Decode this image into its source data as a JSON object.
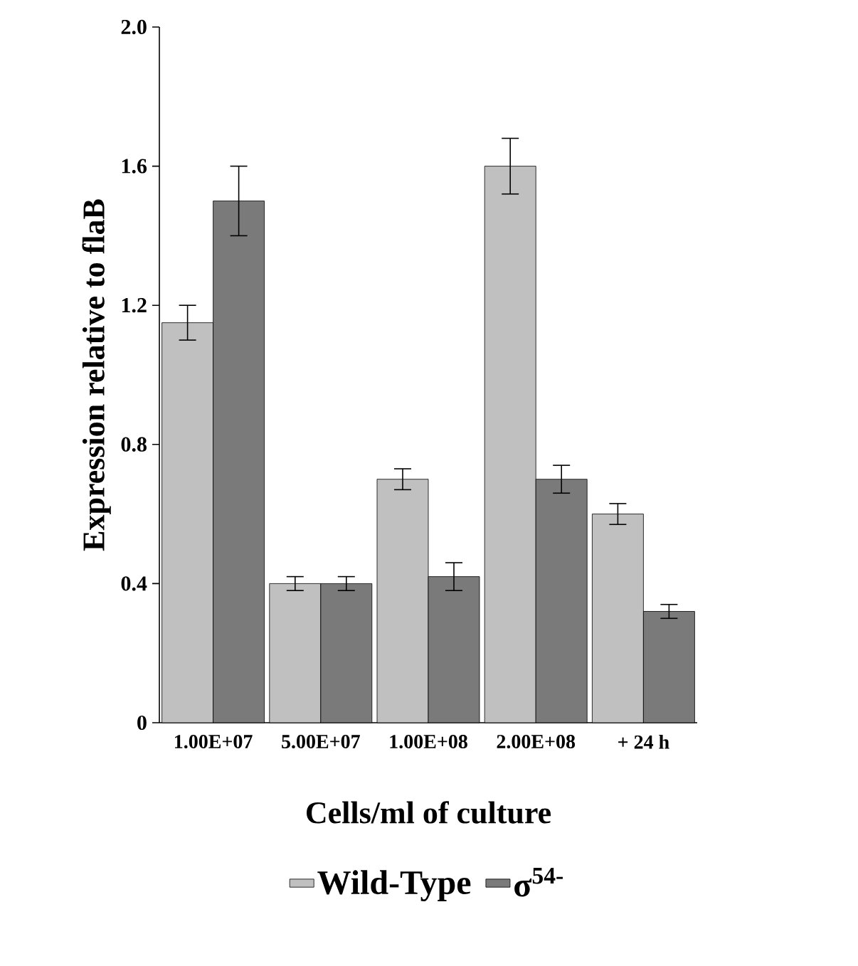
{
  "chart_data": {
    "type": "bar",
    "xlabel": "Cells/ml of culture",
    "ylabel": "Expression relative to flaB",
    "categories": [
      "1.00E+07",
      "5.00E+07",
      "1.00E+08",
      "2.00E+08",
      "+ 24 h"
    ],
    "series": [
      {
        "name": "Wild-Type",
        "color": "#c0c0c0",
        "values": [
          1.15,
          0.4,
          0.7,
          1.6,
          0.6
        ],
        "errors": [
          0.05,
          0.02,
          0.03,
          0.08,
          0.03
        ]
      },
      {
        "name": "σ$^{54-}$",
        "color": "#7a7a7a",
        "values": [
          1.5,
          0.4,
          0.42,
          0.7,
          0.32
        ],
        "errors": [
          0.1,
          0.02,
          0.04,
          0.04,
          0.02
        ]
      }
    ],
    "ylim": [
      0,
      2
    ],
    "yticks": [
      0,
      0.4,
      0.8,
      1.2,
      1.6,
      {
        "value": 2,
        "label": "2.0"
      }
    ],
    "legend": "bottom"
  }
}
